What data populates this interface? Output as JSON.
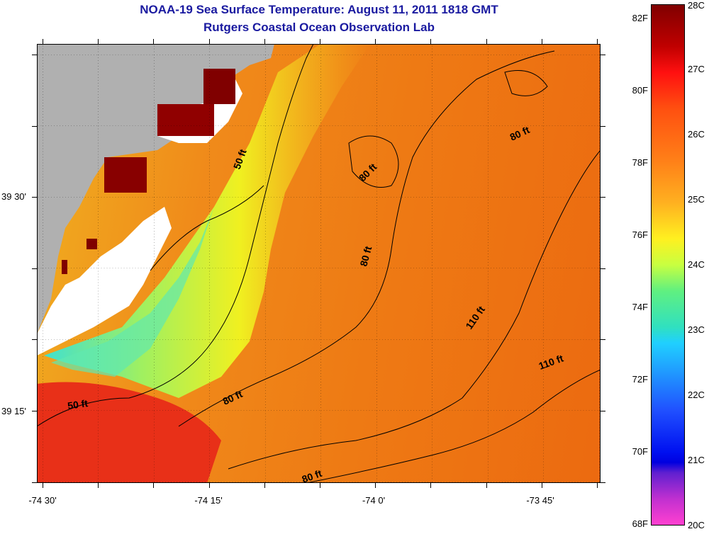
{
  "header": {
    "title": "NOAA-19 Sea Surface Temperature:  August 11, 2011 1818 GMT",
    "subtitle": "Rutgers Coastal Ocean Observation Lab"
  },
  "map": {
    "lat_labels": [
      "39 30'",
      "39 15'"
    ],
    "lon_labels": [
      "-74 30'",
      "-74 15'",
      "-74 0'",
      "-73 45'"
    ],
    "contour_labels": [
      "50 ft",
      "50 ft",
      "80 ft",
      "80 ft",
      "80 ft",
      "80 ft",
      "80 ft",
      "110 ft",
      "110 ft"
    ],
    "land_color": "#b0b0b0",
    "hot_color": "#800000"
  },
  "colorbar": {
    "fahrenheit_labels": [
      "82F",
      "80F",
      "78F",
      "76F",
      "74F",
      "72F",
      "70F",
      "68F"
    ],
    "celsius_labels": [
      "28C",
      "27C",
      "26C",
      "25C",
      "24C",
      "23C",
      "22C",
      "21C",
      "20C"
    ]
  }
}
